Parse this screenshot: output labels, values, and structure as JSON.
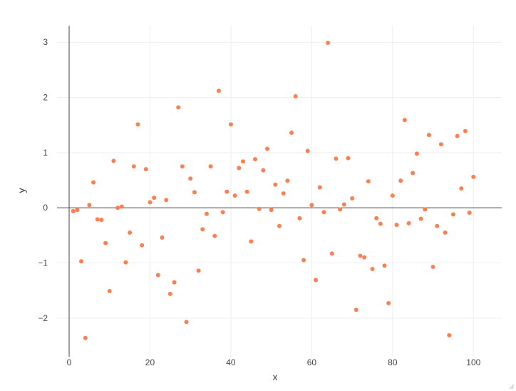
{
  "colors": {
    "marker": "#ff7f50",
    "grid": "#eeeeee",
    "zero_line": "#444444",
    "text": "#444444",
    "background": "#ffffff"
  },
  "chart_data": {
    "type": "scatter",
    "title": "",
    "xlabel": "x",
    "ylabel": "y",
    "xlim": [
      -3,
      107
    ],
    "ylim": [
      -2.7,
      3.3
    ],
    "grid": true,
    "x_ticks": [
      0,
      20,
      40,
      60,
      80,
      100
    ],
    "x_tick_labels": [
      "0",
      "20",
      "40",
      "60",
      "80",
      "100"
    ],
    "y_ticks": [
      -2,
      -1,
      0,
      1,
      2,
      3
    ],
    "y_tick_labels": [
      "−2",
      "−1",
      "0",
      "1",
      "2",
      "3"
    ],
    "series": [
      {
        "marker": "circle",
        "x": [
          1,
          2,
          3,
          4,
          5,
          6,
          7,
          8,
          9,
          10,
          11,
          12,
          13,
          14,
          15,
          16,
          17,
          18,
          19,
          20,
          21,
          22,
          23,
          24,
          25,
          26,
          27,
          28,
          29,
          30,
          31,
          32,
          33,
          34,
          35,
          36,
          37,
          38,
          39,
          40,
          41,
          42,
          43,
          44,
          45,
          46,
          47,
          48,
          49,
          50,
          51,
          52,
          53,
          54,
          55,
          56,
          57,
          58,
          59,
          60,
          61,
          62,
          63,
          64,
          65,
          66,
          67,
          68,
          69,
          70,
          71,
          72,
          73,
          74,
          75,
          76,
          77,
          78,
          79,
          80,
          81,
          82,
          83,
          84,
          85,
          86,
          87,
          88,
          89,
          90,
          91,
          92,
          93,
          94,
          95,
          96,
          97,
          98,
          99,
          100
        ],
        "y": [
          -0.06,
          -0.04,
          -0.97,
          -2.36,
          0.05,
          0.46,
          -0.21,
          -0.22,
          -0.64,
          -1.51,
          0.85,
          0.0,
          0.02,
          -0.99,
          -0.45,
          0.75,
          1.51,
          -0.68,
          0.7,
          0.1,
          0.18,
          -1.22,
          -0.54,
          0.14,
          -1.56,
          -1.35,
          1.82,
          0.75,
          -2.07,
          0.53,
          0.28,
          -1.14,
          -0.39,
          -0.11,
          0.75,
          -0.51,
          2.12,
          -0.08,
          0.29,
          1.51,
          0.22,
          0.72,
          0.84,
          0.29,
          -0.61,
          0.88,
          -0.02,
          0.68,
          1.07,
          -0.04,
          0.42,
          -0.33,
          0.26,
          0.49,
          1.36,
          2.02,
          -0.19,
          -0.95,
          1.03,
          0.05,
          -1.31,
          0.37,
          -0.08,
          2.99,
          -0.83,
          0.89,
          -0.03,
          0.06,
          0.9,
          0.17,
          -1.85,
          -0.87,
          -0.9,
          0.48,
          -1.11,
          -0.19,
          -0.29,
          -1.05,
          -1.73,
          0.22,
          -0.31,
          0.49,
          1.59,
          -0.28,
          0.63,
          0.98,
          -0.2,
          -0.03,
          1.32,
          -1.07,
          -0.33,
          1.15,
          -0.45,
          -2.31,
          -0.12,
          1.3,
          0.35,
          1.39,
          -0.09,
          0.56
        ]
      }
    ]
  }
}
